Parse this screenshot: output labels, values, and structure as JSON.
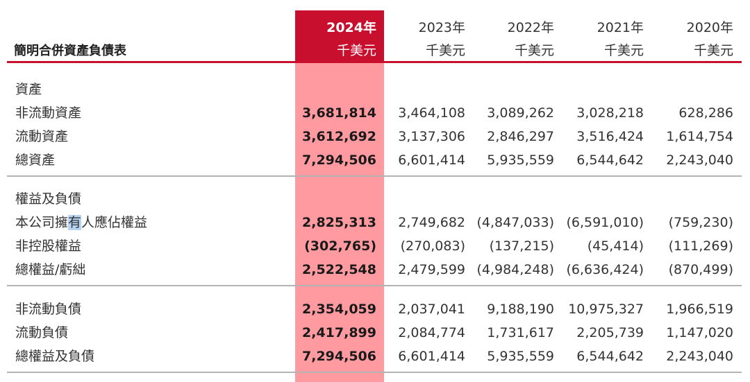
{
  "title": "簡明合併資產負債表",
  "years": [
    "2024年",
    "2023年",
    "2022年",
    "2021年",
    "2020年"
  ],
  "unit": "千美元",
  "sections": [
    {
      "heading": "資產",
      "rows": [
        {
          "label": "非流動資產",
          "values": [
            "3,681,814",
            "3,464,108",
            "3,089,262",
            "3,028,218",
            "628,286"
          ]
        },
        {
          "label": "流動資產",
          "values": [
            "3,612,692",
            "3,137,306",
            "2,846,297",
            "3,516,424",
            "1,614,754"
          ]
        },
        {
          "label": "總資產",
          "values": [
            "7,294,506",
            "6,601,414",
            "5,935,559",
            "6,544,642",
            "2,243,040"
          ]
        }
      ]
    },
    {
      "heading": "權益及負債",
      "rows": [
        {
          "label_pre": "本公司擁",
          "label_sel": "有",
          "label_post": "人應佔權益",
          "values": [
            "2,825,313",
            "2,749,682",
            "(4,847,033)",
            "(6,591,010)",
            "(759,230)"
          ]
        },
        {
          "label": "非控股權益",
          "values": [
            "(302,765)",
            "(270,083)",
            "(137,215)",
            "(45,414)",
            "(111,269)"
          ]
        },
        {
          "label": "總權益/虧絀",
          "values": [
            "2,522,548",
            "2,479,599",
            "(4,984,248)",
            "(6,636,424)",
            "(870,499)"
          ]
        }
      ]
    },
    {
      "heading": "",
      "rows": [
        {
          "label": "非流動負債",
          "values": [
            "2,354,059",
            "2,037,041",
            "9,188,190",
            "10,975,327",
            "1,966,519"
          ]
        },
        {
          "label": "流動負債",
          "values": [
            "2,417,899",
            "2,084,774",
            "1,731,617",
            "2,205,739",
            "1,147,020"
          ]
        },
        {
          "label": "總權益及負債",
          "values": [
            "7,294,506",
            "6,601,414",
            "5,935,559",
            "6,544,642",
            "2,243,040"
          ]
        }
      ]
    }
  ],
  "colors": {
    "accent": "#c8102e",
    "highlight": "#ff9aa0",
    "rule": "#b3b3b3"
  }
}
